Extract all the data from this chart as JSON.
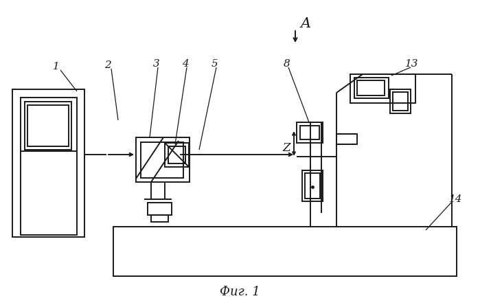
{
  "bg_color": "#ffffff",
  "lc": "#1a1a1a",
  "lw": 1.4,
  "lw_thin": 0.9,
  "fig_caption": "Фиг. 1"
}
